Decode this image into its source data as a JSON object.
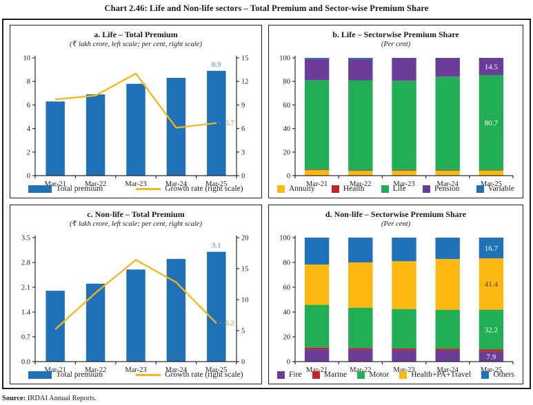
{
  "page": {
    "title": "Chart 2.46: Life and Non-life sectors – Total Premium and Sector-wise Premium Share",
    "source_label": "Source:",
    "source_text": "IRDAI Annual Reports."
  },
  "colors": {
    "axis": "#2a2a2a",
    "bar_blue": "#1F72B8",
    "line_yellow": "#FDB515",
    "bar_label_blue": "#4A86C5",
    "line_label_gold": "#BA9440",
    "connector_gray": "#9b9b9b"
  },
  "chart_data": [
    {
      "id": "a",
      "type": "bar+line",
      "title": "a. Life – Total Premium",
      "subtitle": "(₹ lakh crore, left scale; per cent, right scale)",
      "categories": [
        "Mar-21",
        "Mar-22",
        "Mar-23",
        "Mar-24",
        "Mar-25"
      ],
      "bars": {
        "name": "Total premium",
        "color": "#1F72B8",
        "values": [
          6.3,
          6.9,
          7.8,
          8.3,
          8.9
        ],
        "last_label": "8.9"
      },
      "line": {
        "name": "Growth rate (right scale)",
        "color": "#FDB515",
        "values": [
          9.7,
          10.2,
          13.0,
          6.1,
          6.7
        ],
        "last_label": "6.7"
      },
      "left_axis": {
        "max": 10,
        "labels": [
          "0",
          "2",
          "4",
          "6",
          "8",
          "10"
        ]
      },
      "right_axis": {
        "max": 15,
        "labels": [
          "0",
          "3",
          "6",
          "9",
          "12",
          "15"
        ]
      },
      "legend": [
        {
          "label": "Total premium",
          "swatch": "bar",
          "color": "#1F72B8"
        },
        {
          "label": "Growth rate (right scale)",
          "swatch": "line",
          "color": "#FDB515"
        }
      ]
    },
    {
      "id": "b",
      "type": "stacked-bar",
      "title": "b. Life – Sectorwise Premium Share",
      "subtitle": "(Per cent)",
      "categories": [
        "Mar-21",
        "Mar-22",
        "Mar-23",
        "Mar-24",
        "Mar-25"
      ],
      "left_axis": {
        "max": 100,
        "labels": [
          "0",
          "20",
          "40",
          "60",
          "80",
          "100"
        ]
      },
      "series": [
        {
          "name": "Annuity",
          "color": "#FDB811",
          "values": [
            4.8,
            4.0,
            4.2,
            4.2,
            4.3
          ]
        },
        {
          "name": "Health",
          "color": "#C2222B",
          "values": [
            0.5,
            0.5,
            0.5,
            0.5,
            0.4
          ]
        },
        {
          "name": "Life",
          "color": "#22AE54",
          "values": [
            75.8,
            76.5,
            75.9,
            79.4,
            80.7
          ]
        },
        {
          "name": "Pension",
          "color": "#6C3D98",
          "values": [
            17.9,
            18.2,
            19.1,
            15.6,
            14.5
          ]
        },
        {
          "name": "Variable",
          "color": "#1F72B8",
          "values": [
            1.0,
            0.8,
            0.3,
            0.3,
            0.1
          ]
        }
      ],
      "data_labels": [
        {
          "series": "Life",
          "index": 4,
          "text": "80.7",
          "color": "#FFFFFF"
        },
        {
          "series": "Pension",
          "index": 4,
          "text": "14.5",
          "color": "#FFFFFF"
        }
      ],
      "legend": [
        {
          "label": "Annuity",
          "swatch": "square",
          "color": "#FDB811"
        },
        {
          "label": "Health",
          "swatch": "square",
          "color": "#C2222B"
        },
        {
          "label": "Life",
          "swatch": "square",
          "color": "#22AE54"
        },
        {
          "label": "Pension",
          "swatch": "square",
          "color": "#6C3D98"
        },
        {
          "label": "Variable",
          "swatch": "square",
          "color": "#1F72B8"
        }
      ]
    },
    {
      "id": "c",
      "type": "bar+line",
      "title": "c. Non-life – Total Premium",
      "subtitle": "(₹ lakh crore, left scale; per cent, right scale)",
      "categories": [
        "Mar-21",
        "Mar-22",
        "Mar-23",
        "Mar-24",
        "Mar-25"
      ],
      "bars": {
        "name": "Total premium",
        "color": "#1F72B8",
        "values": [
          2.0,
          2.2,
          2.6,
          2.9,
          3.1
        ],
        "last_label": "3.1"
      },
      "line": {
        "name": "Growth rate (right scale)",
        "color": "#FDB515",
        "values": [
          5.2,
          11.1,
          16.4,
          12.8,
          6.2
        ],
        "last_label": "6.2"
      },
      "left_axis": {
        "max": 3.5,
        "labels": [
          "0.0",
          "0.7",
          "1.4",
          "2.1",
          "2.8",
          "3.5"
        ]
      },
      "right_axis": {
        "max": 20,
        "labels": [
          "0",
          "5",
          "10",
          "15",
          "20"
        ]
      },
      "legend": [
        {
          "label": "Total premium",
          "swatch": "bar",
          "color": "#1F72B8"
        },
        {
          "label": "Growth rate (right scale)",
          "swatch": "line",
          "color": "#FDB515"
        }
      ]
    },
    {
      "id": "d",
      "type": "stacked-bar",
      "title": "d. Non-life – Sectorwise Premium Share",
      "subtitle": "(Per cent)",
      "categories": [
        "Mar-21",
        "Mar-22",
        "Mar-23",
        "Mar-24",
        "Mar-25"
      ],
      "left_axis": {
        "max": 100,
        "labels": [
          "0",
          "20",
          "40",
          "60",
          "80",
          "100"
        ]
      },
      "series": [
        {
          "name": "Fire",
          "color": "#6C3D98",
          "values": [
            9.8,
            9.5,
            9.2,
            8.9,
            7.9
          ]
        },
        {
          "name": "Marine",
          "color": "#C2222B",
          "values": [
            1.5,
            1.4,
            1.4,
            1.4,
            1.8
          ]
        },
        {
          "name": "Motor",
          "color": "#22AE54",
          "values": [
            34.5,
            32.6,
            31.8,
            31.5,
            32.2
          ]
        },
        {
          "name": "Health+PA+Travel",
          "color": "#FDB811",
          "values": [
            32.5,
            36.5,
            38.6,
            41.0,
            41.4
          ]
        },
        {
          "name": "Others",
          "color": "#1F72B8",
          "values": [
            21.7,
            20.0,
            19.0,
            17.2,
            16.7
          ]
        }
      ],
      "data_labels": [
        {
          "series": "Fire",
          "index": 4,
          "text": "7.9",
          "color": "#FFFFFF"
        },
        {
          "series": "Motor",
          "index": 4,
          "text": "32.2",
          "color": "#FFFFFF"
        },
        {
          "series": "Health+PA+Travel",
          "index": 4,
          "text": "41.4",
          "color": "#454545"
        },
        {
          "series": "Others",
          "index": 4,
          "text": "16.7",
          "color": "#FFFFFF"
        }
      ],
      "legend": [
        {
          "label": "Fire",
          "swatch": "square",
          "color": "#6C3D98"
        },
        {
          "label": "Marine",
          "swatch": "square",
          "color": "#C2222B"
        },
        {
          "label": "Motor",
          "swatch": "square",
          "color": "#22AE54"
        },
        {
          "label": "Health+PA+Travel",
          "swatch": "square",
          "color": "#FDB811"
        },
        {
          "label": "Others",
          "swatch": "square",
          "color": "#1F72B8"
        }
      ]
    }
  ]
}
